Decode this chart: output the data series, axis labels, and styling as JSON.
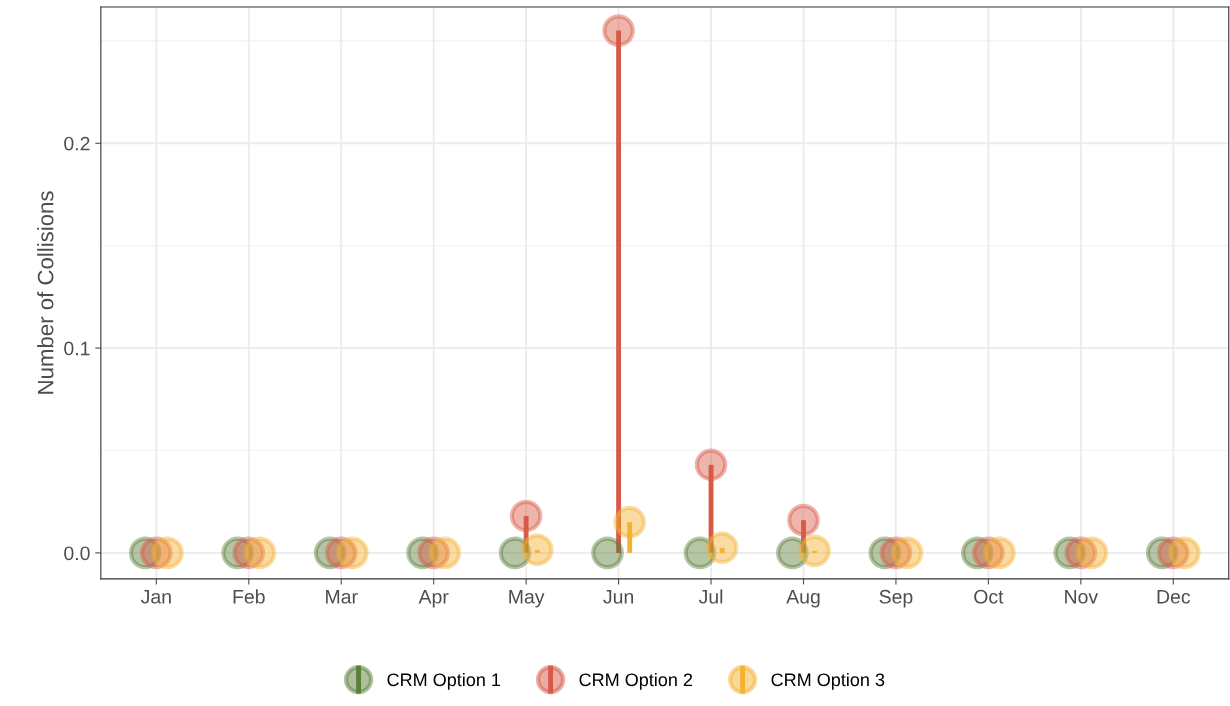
{
  "chart_data": {
    "type": "lollipop",
    "ylabel": "Number of Collisions",
    "categories": [
      "Jan",
      "Feb",
      "Mar",
      "Apr",
      "May",
      "Jun",
      "Jul",
      "Aug",
      "Sep",
      "Oct",
      "Nov",
      "Dec"
    ],
    "series": [
      {
        "name": "CRM Option 1",
        "color": "#5b7f3a",
        "values": [
          0,
          0,
          0,
          0,
          0,
          0,
          0,
          0,
          0,
          0,
          0,
          0
        ]
      },
      {
        "name": "CRM Option 2",
        "color": "#d65a48",
        "values": [
          0,
          0,
          0,
          0,
          0.018,
          0.255,
          0.043,
          0.016,
          0,
          0,
          0,
          0
        ]
      },
      {
        "name": "CRM Option 3",
        "color": "#f3b232",
        "values": [
          0,
          0,
          0,
          0,
          0.0015,
          0.015,
          0.0025,
          0.001,
          0,
          0,
          0,
          0
        ]
      }
    ],
    "ylim": [
      -0.0127,
      0.2665
    ],
    "yticks": [
      {
        "value": 0,
        "label": "0.0"
      },
      {
        "value": 0.1,
        "label": "0.1"
      },
      {
        "value": 0.2,
        "label": "0.2"
      }
    ],
    "grid": true,
    "legend": "bottom",
    "marker": "circle"
  }
}
